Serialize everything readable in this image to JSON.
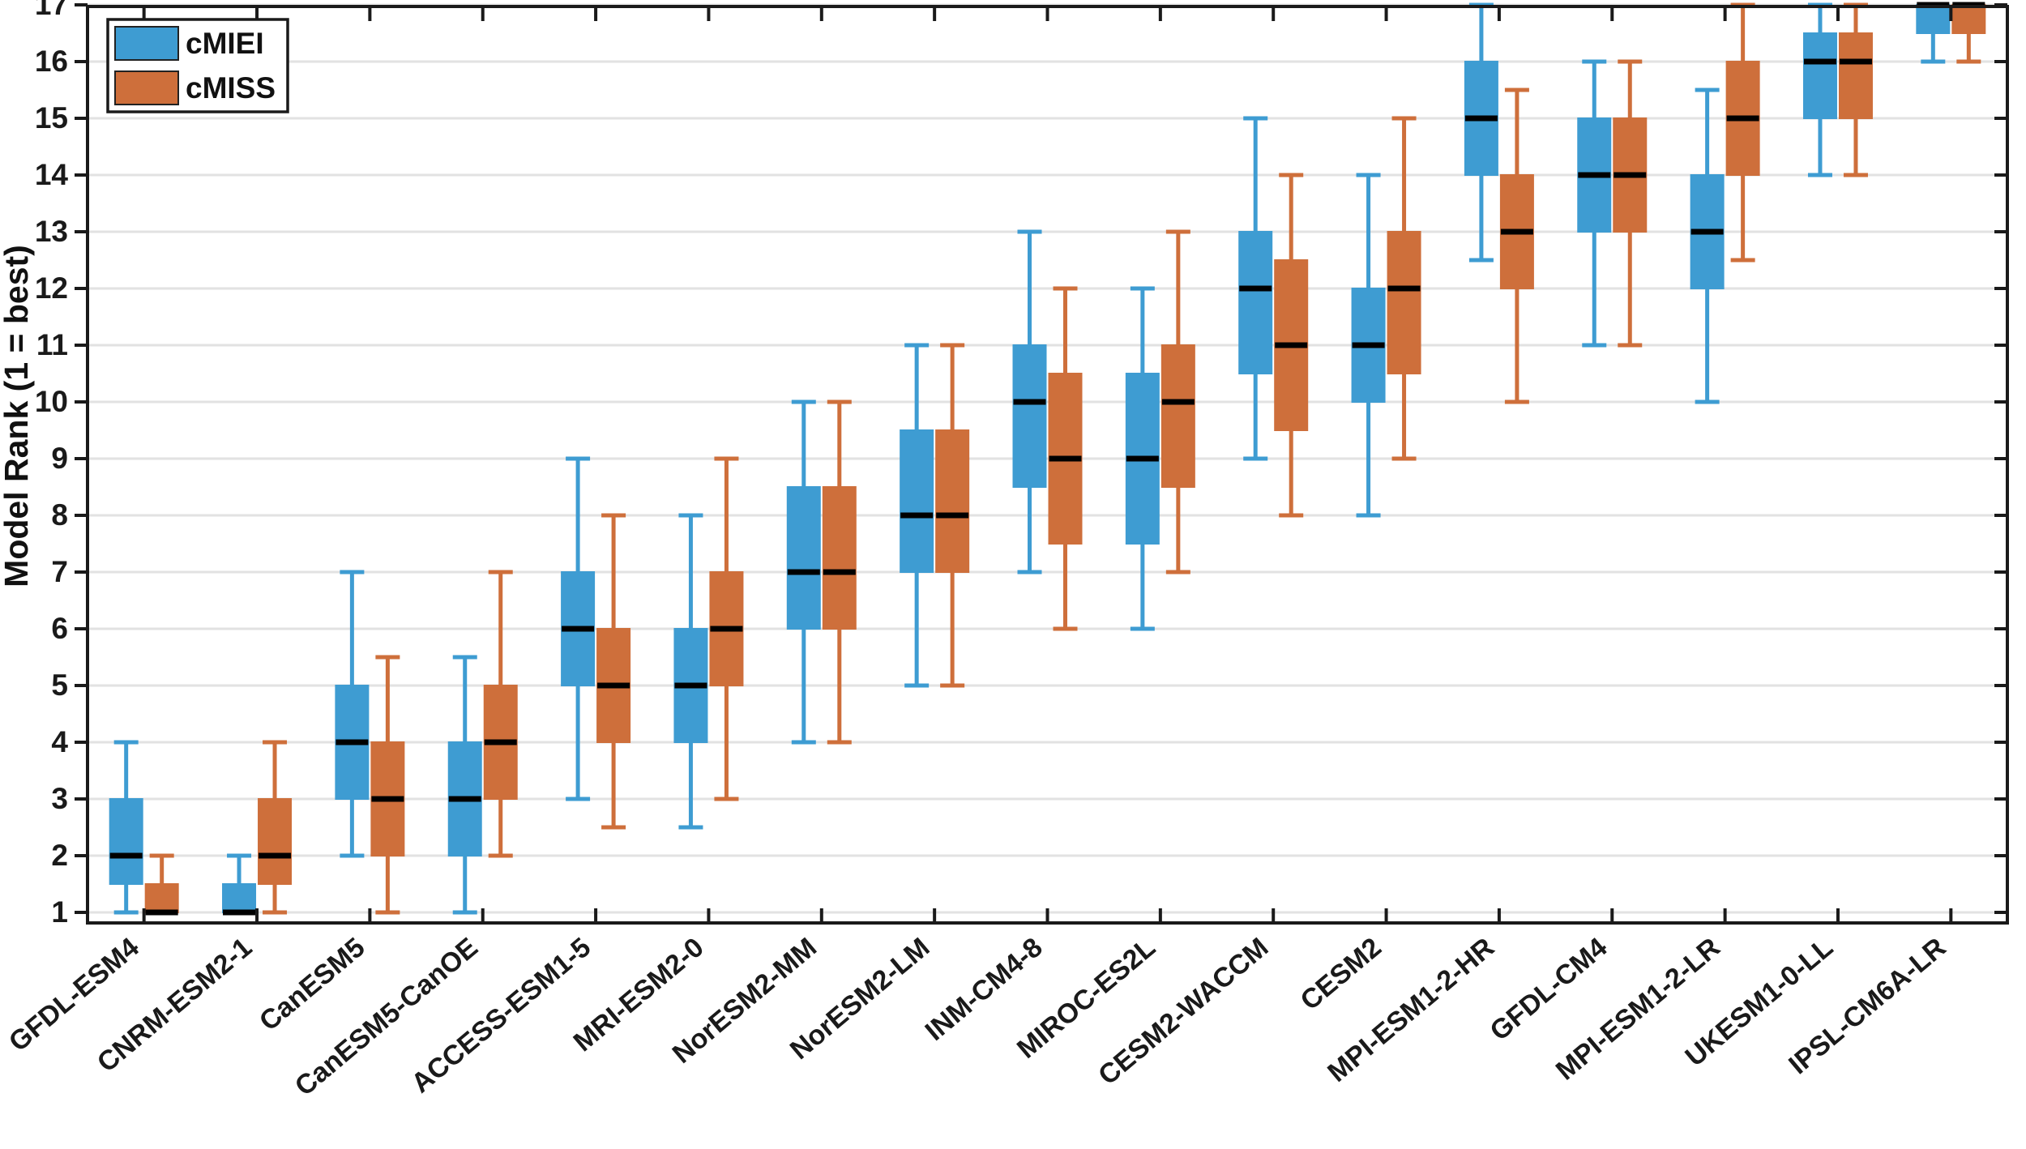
{
  "chart_data": {
    "type": "boxplot",
    "title": "",
    "ylabel": "Model Rank (1 = best)",
    "xlabel": "",
    "ylim": [
      0.8,
      17.06
    ],
    "y_ticks": [
      1,
      2,
      3,
      4,
      5,
      6,
      7,
      8,
      9,
      10,
      11,
      12,
      13,
      14,
      15,
      16,
      17
    ],
    "grid": "horizontal-gridlines-on",
    "gridline_color": "#e2e2e2",
    "axis_color": "#1a1a1a",
    "median_color": "#000000",
    "legend": {
      "position": "top-left",
      "entries": [
        {
          "label": "cMIEI",
          "color": "#3e9cd2"
        },
        {
          "label": "cMISS",
          "color": "#ce6f3b"
        }
      ]
    },
    "categories": [
      "GFDL-ESM4",
      "CNRM-ESM2-1",
      "CanESM5",
      "CanESM5-CanOE",
      "ACCESS-ESM1-5",
      "MRI-ESM2-0",
      "NorESM2-MM",
      "NorESM2-LM",
      "INM-CM4-8",
      "MIROC-ES2L",
      "CESM2-WACCM",
      "CESM2",
      "MPI-ESM1-2-HR",
      "GFDL-CM4",
      "MPI-ESM1-2-LR",
      "UKESM1-0-LL",
      "IPSL-CM6A-LR"
    ],
    "box_value_order": [
      "whisker_low",
      "q1",
      "median",
      "q3",
      "whisker_high"
    ],
    "series": [
      {
        "name": "cMIEI",
        "color": "#3e9cd2",
        "boxes": [
          [
            1,
            1.5,
            2,
            3,
            4
          ],
          [
            1,
            1,
            1,
            1.5,
            2
          ],
          [
            2,
            3,
            4,
            5,
            7
          ],
          [
            1,
            2,
            3,
            4,
            5.5
          ],
          [
            3,
            5,
            6,
            7,
            9
          ],
          [
            2.5,
            4,
            5,
            6,
            8
          ],
          [
            4,
            6,
            7,
            8.5,
            10
          ],
          [
            5,
            7,
            8,
            9.5,
            11
          ],
          [
            7,
            8.5,
            10,
            11,
            13
          ],
          [
            6,
            7.5,
            9,
            10.5,
            12
          ],
          [
            9,
            10.5,
            12,
            13,
            15
          ],
          [
            8,
            10,
            11,
            12,
            14
          ],
          [
            12.5,
            14,
            15,
            16,
            17
          ],
          [
            11,
            13,
            14,
            15,
            16
          ],
          [
            10,
            12,
            13,
            14,
            15.5
          ],
          [
            14,
            15,
            16,
            16.5,
            17
          ],
          [
            16,
            16.5,
            17,
            17,
            17
          ]
        ]
      },
      {
        "name": "cMISS",
        "color": "#ce6f3b",
        "boxes": [
          [
            1,
            1,
            1,
            1.5,
            2
          ],
          [
            1,
            1.5,
            2,
            3,
            4
          ],
          [
            1,
            2,
            3,
            4,
            5.5
          ],
          [
            2,
            3,
            4,
            5,
            7
          ],
          [
            2.5,
            4,
            5,
            6,
            8
          ],
          [
            3,
            5,
            6,
            7,
            9
          ],
          [
            4,
            6,
            7,
            8.5,
            10
          ],
          [
            5,
            7,
            8,
            9.5,
            11
          ],
          [
            6,
            7.5,
            9,
            10.5,
            12
          ],
          [
            7,
            8.5,
            10,
            11,
            13
          ],
          [
            8,
            9.5,
            11,
            12.5,
            14
          ],
          [
            9,
            10.5,
            12,
            13,
            15
          ],
          [
            10,
            12,
            13,
            14,
            15.5
          ],
          [
            11,
            13,
            14,
            15,
            16
          ],
          [
            12.5,
            14,
            15,
            16,
            17
          ],
          [
            14,
            15,
            16,
            16.5,
            17
          ],
          [
            16,
            16.5,
            17,
            17,
            17
          ]
        ]
      }
    ]
  },
  "layout_note_is_not_data": null
}
